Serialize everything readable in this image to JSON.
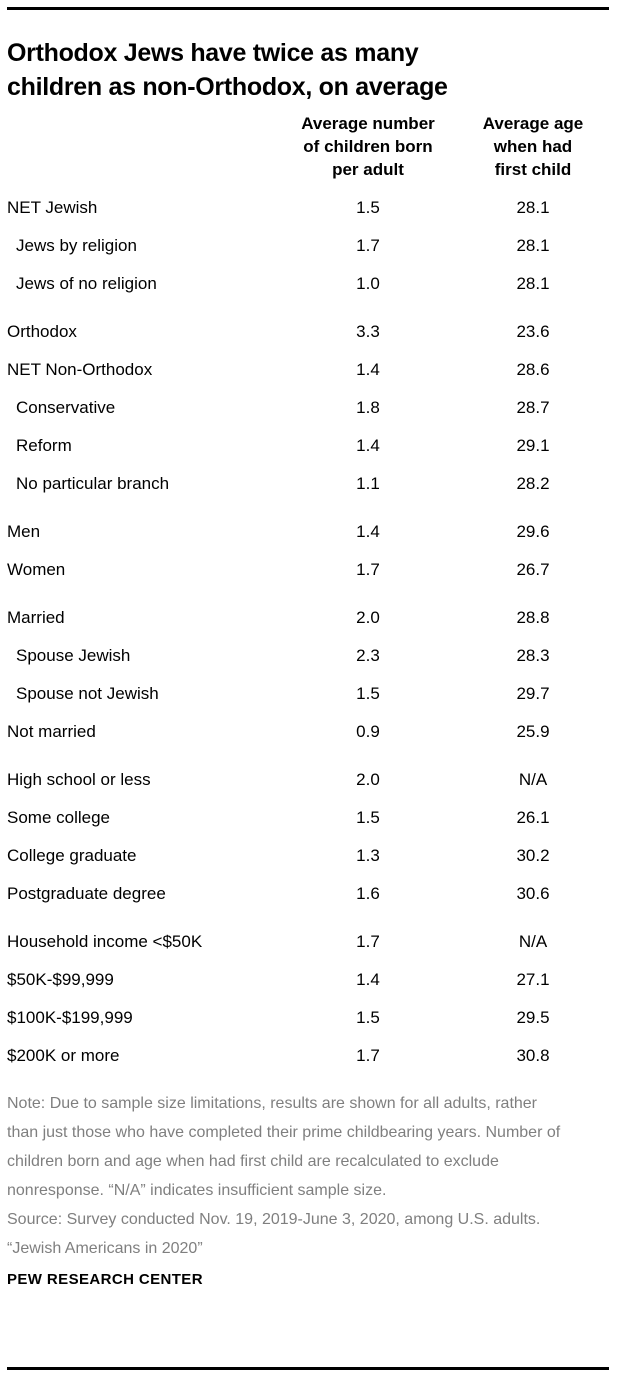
{
  "chart_data": {
    "type": "table",
    "title": "Orthodox Jews have twice as many children as non-Orthodox, on average",
    "title_lines": [
      "Orthodox Jews have twice as many",
      "children as non-Orthodox, on average"
    ],
    "columns": [
      {
        "label": "Average number of children born per adult",
        "lines": [
          "Average number",
          "of children born",
          "per adult"
        ]
      },
      {
        "label": "Average age when had first child",
        "lines": [
          "Average age",
          "when had",
          "first child"
        ]
      }
    ],
    "rows": [
      {
        "label": "NET Jewish",
        "values": [
          "1.5",
          "28.1"
        ],
        "indent": false,
        "group_start": false
      },
      {
        "label": "Jews by religion",
        "values": [
          "1.7",
          "28.1"
        ],
        "indent": true,
        "group_start": false
      },
      {
        "label": "Jews of no religion",
        "values": [
          "1.0",
          "28.1"
        ],
        "indent": true,
        "group_start": false
      },
      {
        "label": "Orthodox",
        "values": [
          "3.3",
          "23.6"
        ],
        "indent": false,
        "group_start": true
      },
      {
        "label": "NET Non-Orthodox",
        "values": [
          "1.4",
          "28.6"
        ],
        "indent": false,
        "group_start": false
      },
      {
        "label": "Conservative",
        "values": [
          "1.8",
          "28.7"
        ],
        "indent": true,
        "group_start": false
      },
      {
        "label": "Reform",
        "values": [
          "1.4",
          "29.1"
        ],
        "indent": true,
        "group_start": false
      },
      {
        "label": "No particular branch",
        "values": [
          "1.1",
          "28.2"
        ],
        "indent": true,
        "group_start": false
      },
      {
        "label": "Men",
        "values": [
          "1.4",
          "29.6"
        ],
        "indent": false,
        "group_start": true
      },
      {
        "label": "Women",
        "values": [
          "1.7",
          "26.7"
        ],
        "indent": false,
        "group_start": false
      },
      {
        "label": "Married",
        "values": [
          "2.0",
          "28.8"
        ],
        "indent": false,
        "group_start": true
      },
      {
        "label": "Spouse Jewish",
        "values": [
          "2.3",
          "28.3"
        ],
        "indent": true,
        "group_start": false
      },
      {
        "label": "Spouse not Jewish",
        "values": [
          "1.5",
          "29.7"
        ],
        "indent": true,
        "group_start": false
      },
      {
        "label": "Not married",
        "values": [
          "0.9",
          "25.9"
        ],
        "indent": false,
        "group_start": false
      },
      {
        "label": "High school or less",
        "values": [
          "2.0",
          "N/A"
        ],
        "indent": false,
        "group_start": true
      },
      {
        "label": "Some college",
        "values": [
          "1.5",
          "26.1"
        ],
        "indent": false,
        "group_start": false
      },
      {
        "label": "College graduate",
        "values": [
          "1.3",
          "30.2"
        ],
        "indent": false,
        "group_start": false
      },
      {
        "label": "Postgraduate degree",
        "values": [
          "1.6",
          "30.6"
        ],
        "indent": false,
        "group_start": false
      },
      {
        "label": "Household income <$50K",
        "values": [
          "1.7",
          "N/A"
        ],
        "indent": false,
        "group_start": true
      },
      {
        "label": "$50K-$99,999",
        "values": [
          "1.4",
          "27.1"
        ],
        "indent": false,
        "group_start": false
      },
      {
        "label": "$100K-$199,999",
        "values": [
          "1.5",
          "29.5"
        ],
        "indent": false,
        "group_start": false
      },
      {
        "label": "$200K or more",
        "values": [
          "1.7",
          "30.8"
        ],
        "indent": false,
        "group_start": false
      }
    ]
  },
  "notes": {
    "note": "Note: Due to sample size limitations, results are shown for all adults, rather than just those who have completed their prime childbearing years. Number of children born and age when had first child are recalculated to exclude nonresponse. “N/A” indicates insufficient sample size.",
    "source": "Source: Survey conducted Nov. 19, 2019-June 3, 2020, among U.S. adults.",
    "citation": "“Jewish Americans in 2020”"
  },
  "footer": {
    "brand": "PEW RESEARCH CENTER"
  },
  "colors": {
    "text": "#000000",
    "note_gray": "#7f7f7f",
    "background": "#ffffff",
    "rule": "#000000"
  }
}
